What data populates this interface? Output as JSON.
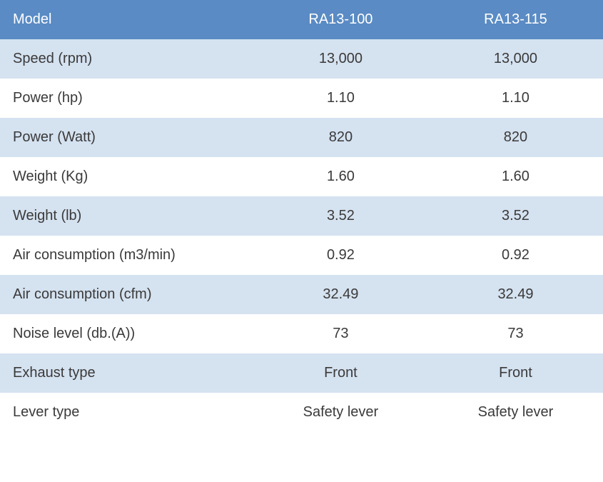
{
  "table": {
    "type": "table",
    "header_bg": "#5a8bc4",
    "header_text_color": "#ffffff",
    "row_bg_alt": "#d5e2f0",
    "row_bg": "#ffffff",
    "text_color": "#3a3a3a",
    "label_text_color": "#3a3a3a",
    "font_size": 20,
    "columns": [
      {
        "label": "Model",
        "align": "left"
      },
      {
        "label": "RA13-100",
        "align": "center"
      },
      {
        "label": "RA13-115",
        "align": "center"
      }
    ],
    "rows": [
      {
        "label": "Speed (rpm)",
        "v1": "13,000",
        "v2": "13,000"
      },
      {
        "label": "Power (hp)",
        "v1": "1.10",
        "v2": "1.10"
      },
      {
        "label": "Power (Watt)",
        "v1": "820",
        "v2": "820"
      },
      {
        "label": "Weight (Kg)",
        "v1": "1.60",
        "v2": "1.60"
      },
      {
        "label": "Weight (lb)",
        "v1": "3.52",
        "v2": "3.52"
      },
      {
        "label": "Air consumption (m3/min)",
        "v1": "0.92",
        "v2": "0.92"
      },
      {
        "label": "Air consumption (cfm)",
        "v1": "32.49",
        "v2": "32.49"
      },
      {
        "label": "Noise level (db.(A))",
        "v1": "73",
        "v2": "73"
      },
      {
        "label": "Exhaust type",
        "v1": "Front",
        "v2": "Front"
      },
      {
        "label": "Lever type",
        "v1": "Safety lever",
        "v2": "Safety lever"
      }
    ]
  }
}
